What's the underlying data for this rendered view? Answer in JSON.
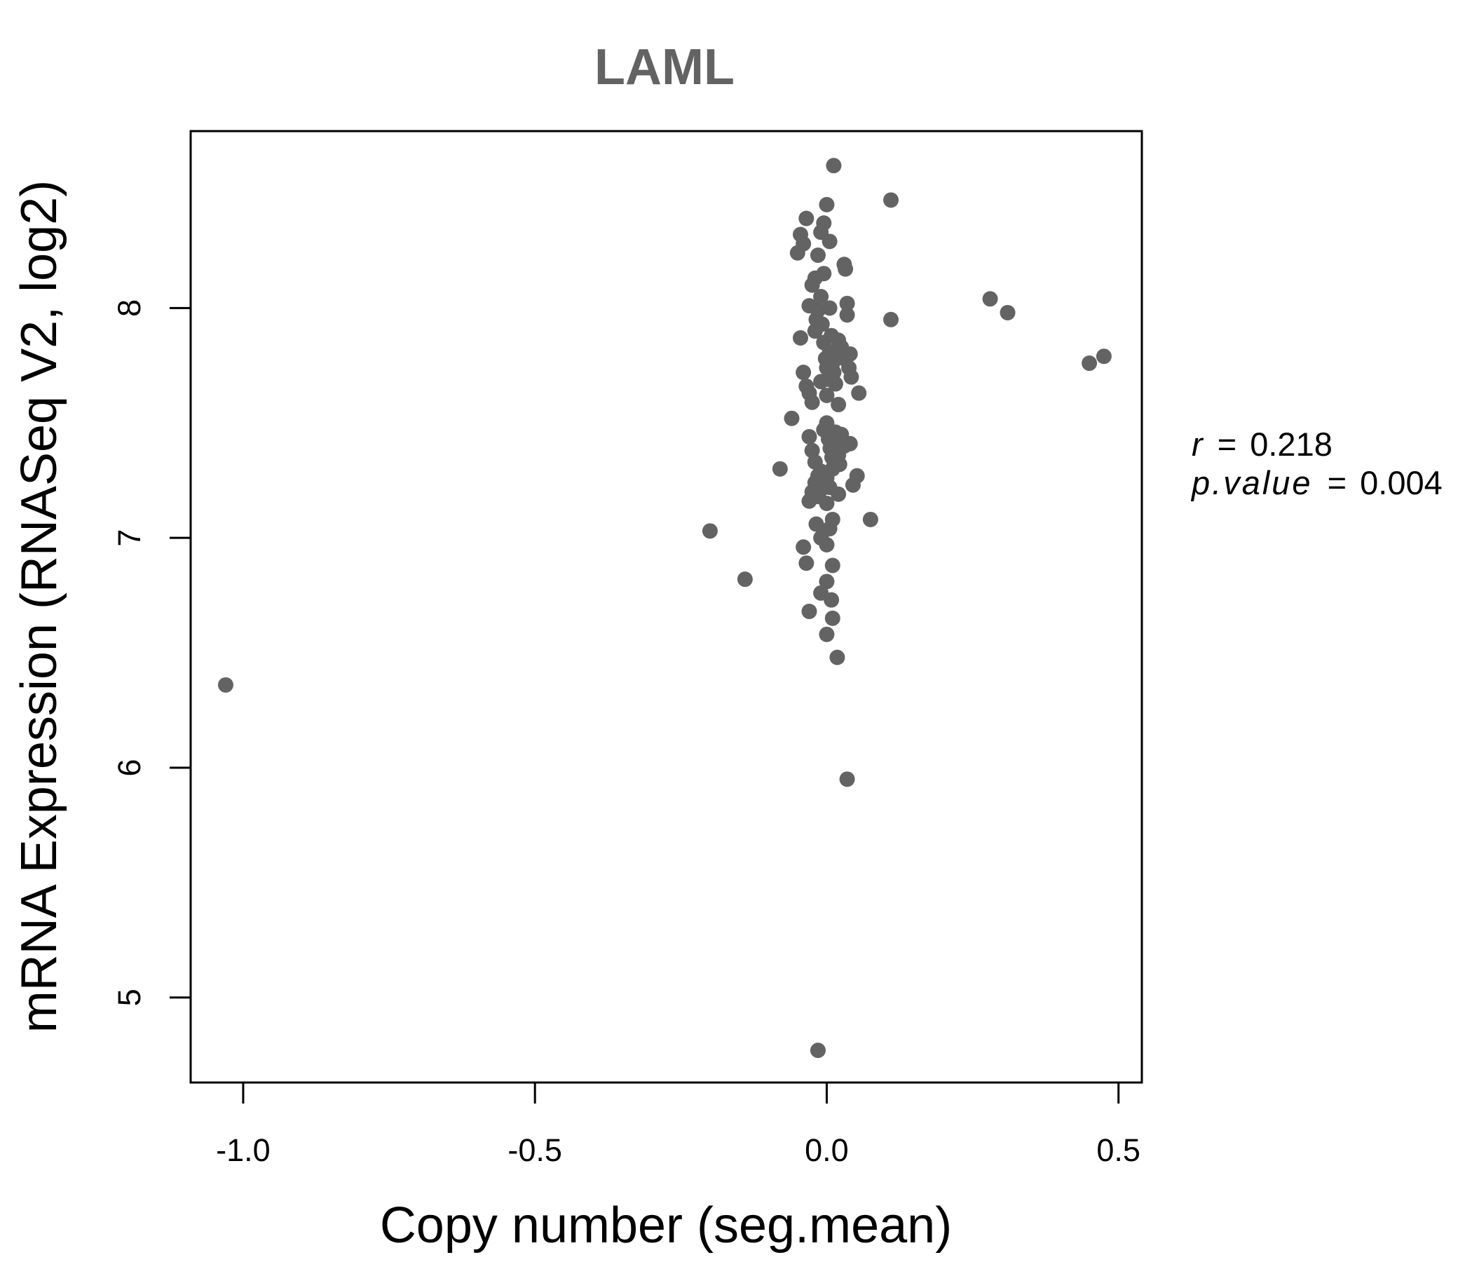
{
  "chart_data": {
    "type": "scatter",
    "title": "LAML",
    "xlabel": "Copy number (seg.mean)",
    "ylabel": "mRNA Expression (RNASeq V2, log2)",
    "xlim": [
      -1.09,
      0.54
    ],
    "ylim": [
      4.63,
      8.77
    ],
    "x_ticks": [
      -1.0,
      -0.5,
      0.0,
      0.5
    ],
    "x_tick_labels": [
      "-1.0",
      "-0.5",
      "0.0",
      "0.5"
    ],
    "y_ticks": [
      5,
      6,
      7,
      8
    ],
    "y_tick_labels": [
      "5",
      "6",
      "7",
      "8"
    ],
    "grid": false,
    "legend": "none",
    "point_color": "#636363",
    "stats": {
      "r_label": "r",
      "r_value": "0.218",
      "p_label": "p.value",
      "p_value": "0.004"
    },
    "points": [
      [
        -1.03,
        6.36
      ],
      [
        -0.2,
        7.03
      ],
      [
        -0.14,
        6.82
      ],
      [
        -0.08,
        7.3
      ],
      [
        -0.06,
        7.52
      ],
      [
        -0.05,
        8.24
      ],
      [
        -0.045,
        8.32
      ],
      [
        -0.04,
        8.28
      ],
      [
        -0.035,
        8.39
      ],
      [
        -0.03,
        8.01
      ],
      [
        -0.025,
        8.1
      ],
      [
        -0.02,
        8.13
      ],
      [
        -0.015,
        8.23
      ],
      [
        -0.01,
        8.33
      ],
      [
        -0.005,
        8.37
      ],
      [
        0.0,
        8.45
      ],
      [
        0.005,
        8.29
      ],
      [
        0.012,
        8.62
      ],
      [
        0.03,
        8.19
      ],
      [
        0.032,
        8.17
      ],
      [
        -0.045,
        7.87
      ],
      [
        -0.04,
        7.72
      ],
      [
        -0.035,
        7.66
      ],
      [
        -0.03,
        7.63
      ],
      [
        -0.025,
        7.59
      ],
      [
        -0.02,
        7.9
      ],
      [
        -0.018,
        7.95
      ],
      [
        -0.015,
        7.99
      ],
      [
        -0.01,
        8.05
      ],
      [
        -0.008,
        7.93
      ],
      [
        -0.005,
        7.85
      ],
      [
        -0.002,
        7.78
      ],
      [
        0.0,
        7.74
      ],
      [
        0.003,
        7.69
      ],
      [
        0.005,
        7.81
      ],
      [
        0.008,
        7.88
      ],
      [
        0.01,
        7.76
      ],
      [
        0.012,
        7.72
      ],
      [
        0.015,
        7.67
      ],
      [
        0.018,
        7.8
      ],
      [
        0.02,
        7.86
      ],
      [
        0.025,
        7.83
      ],
      [
        0.03,
        7.78
      ],
      [
        0.035,
        7.97
      ],
      [
        0.035,
        8.02
      ],
      [
        0.038,
        7.74
      ],
      [
        0.04,
        7.8
      ],
      [
        0.042,
        7.7
      ],
      [
        0.055,
        7.63
      ],
      [
        0.02,
        7.58
      ],
      [
        0.0,
        7.62
      ],
      [
        -0.01,
        7.68
      ],
      [
        0.005,
        8.0
      ],
      [
        -0.005,
        8.15
      ],
      [
        -0.03,
        7.44
      ],
      [
        -0.025,
        7.38
      ],
      [
        -0.02,
        7.33
      ],
      [
        -0.015,
        7.27
      ],
      [
        -0.01,
        7.21
      ],
      [
        -0.005,
        7.47
      ],
      [
        0.0,
        7.5
      ],
      [
        0.003,
        7.43
      ],
      [
        0.006,
        7.39
      ],
      [
        0.009,
        7.35
      ],
      [
        0.012,
        7.31
      ],
      [
        0.015,
        7.46
      ],
      [
        0.018,
        7.41
      ],
      [
        0.02,
        7.36
      ],
      [
        0.022,
        7.32
      ],
      [
        0.025,
        7.45
      ],
      [
        0.03,
        7.4
      ],
      [
        0.04,
        7.41
      ],
      [
        0.045,
        7.23
      ],
      [
        0.052,
        7.27
      ],
      [
        -0.03,
        7.16
      ],
      [
        -0.025,
        7.2
      ],
      [
        -0.02,
        7.24
      ],
      [
        -0.015,
        7.18
      ],
      [
        -0.01,
        7.29
      ],
      [
        0.0,
        7.26
      ],
      [
        0.005,
        7.22
      ],
      [
        0.01,
        7.3
      ],
      [
        0.02,
        7.19
      ],
      [
        0.0,
        7.15
      ],
      [
        -0.018,
        7.06
      ],
      [
        -0.01,
        7.0
      ],
      [
        -0.005,
        7.03
      ],
      [
        0.0,
        6.97
      ],
      [
        0.005,
        7.04
      ],
      [
        0.01,
        7.08
      ],
      [
        0.075,
        7.08
      ],
      [
        -0.04,
        6.96
      ],
      [
        -0.035,
        6.89
      ],
      [
        0.01,
        6.88
      ],
      [
        0.0,
        6.81
      ],
      [
        -0.01,
        6.76
      ],
      [
        0.008,
        6.73
      ],
      [
        -0.03,
        6.68
      ],
      [
        0.01,
        6.65
      ],
      [
        0.0,
        6.58
      ],
      [
        0.018,
        6.48
      ],
      [
        0.035,
        5.95
      ],
      [
        -0.015,
        4.77
      ],
      [
        0.11,
        8.47
      ],
      [
        0.11,
        7.95
      ],
      [
        0.28,
        8.04
      ],
      [
        0.31,
        7.98
      ],
      [
        0.45,
        7.76
      ],
      [
        0.475,
        7.79
      ]
    ]
  }
}
